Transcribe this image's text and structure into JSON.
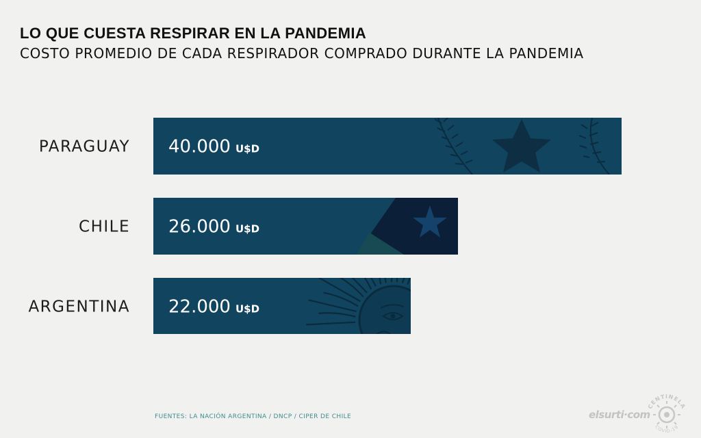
{
  "title": "LO QUE CUESTA RESPIRAR EN LA PANDEMIA",
  "subtitle": "COSTO PROMEDIO DE CADA RESPIRADOR COMPRADO DURANTE LA PANDEMIA",
  "source": "FUENTES: LA NACIÓN ARGENTINA / DNCP / CIPER DE CHILE",
  "logos": {
    "elsurti": "elsurti.com",
    "centinela_top": "CENTINELA",
    "centinela_bottom": "COVID-19"
  },
  "colors": {
    "bar": "#11445f",
    "bar_dark": "#0d2f46",
    "label": "#1c1c1c",
    "source": "#3f8d8c",
    "background": "#f1f1f0"
  },
  "chart_data": {
    "type": "bar",
    "orientation": "horizontal",
    "categories": [
      "PARAGUAY",
      "CHILE",
      "ARGENTINA"
    ],
    "values": [
      40000,
      26000,
      22000
    ],
    "value_labels": [
      "40.000",
      "26.000",
      "22.000"
    ],
    "unit": "U$D",
    "title": "LO QUE CUESTA RESPIRAR EN LA PANDEMIA",
    "subtitle": "COSTO PROMEDIO DE CADA RESPIRADOR COMPRADO DURANTE LA PANDEMIA",
    "xlim": [
      0,
      40000
    ],
    "grid": false,
    "legend": "none",
    "decorations": [
      "paraguay-emblem",
      "chile-flag-star",
      "argentina-sun"
    ]
  }
}
